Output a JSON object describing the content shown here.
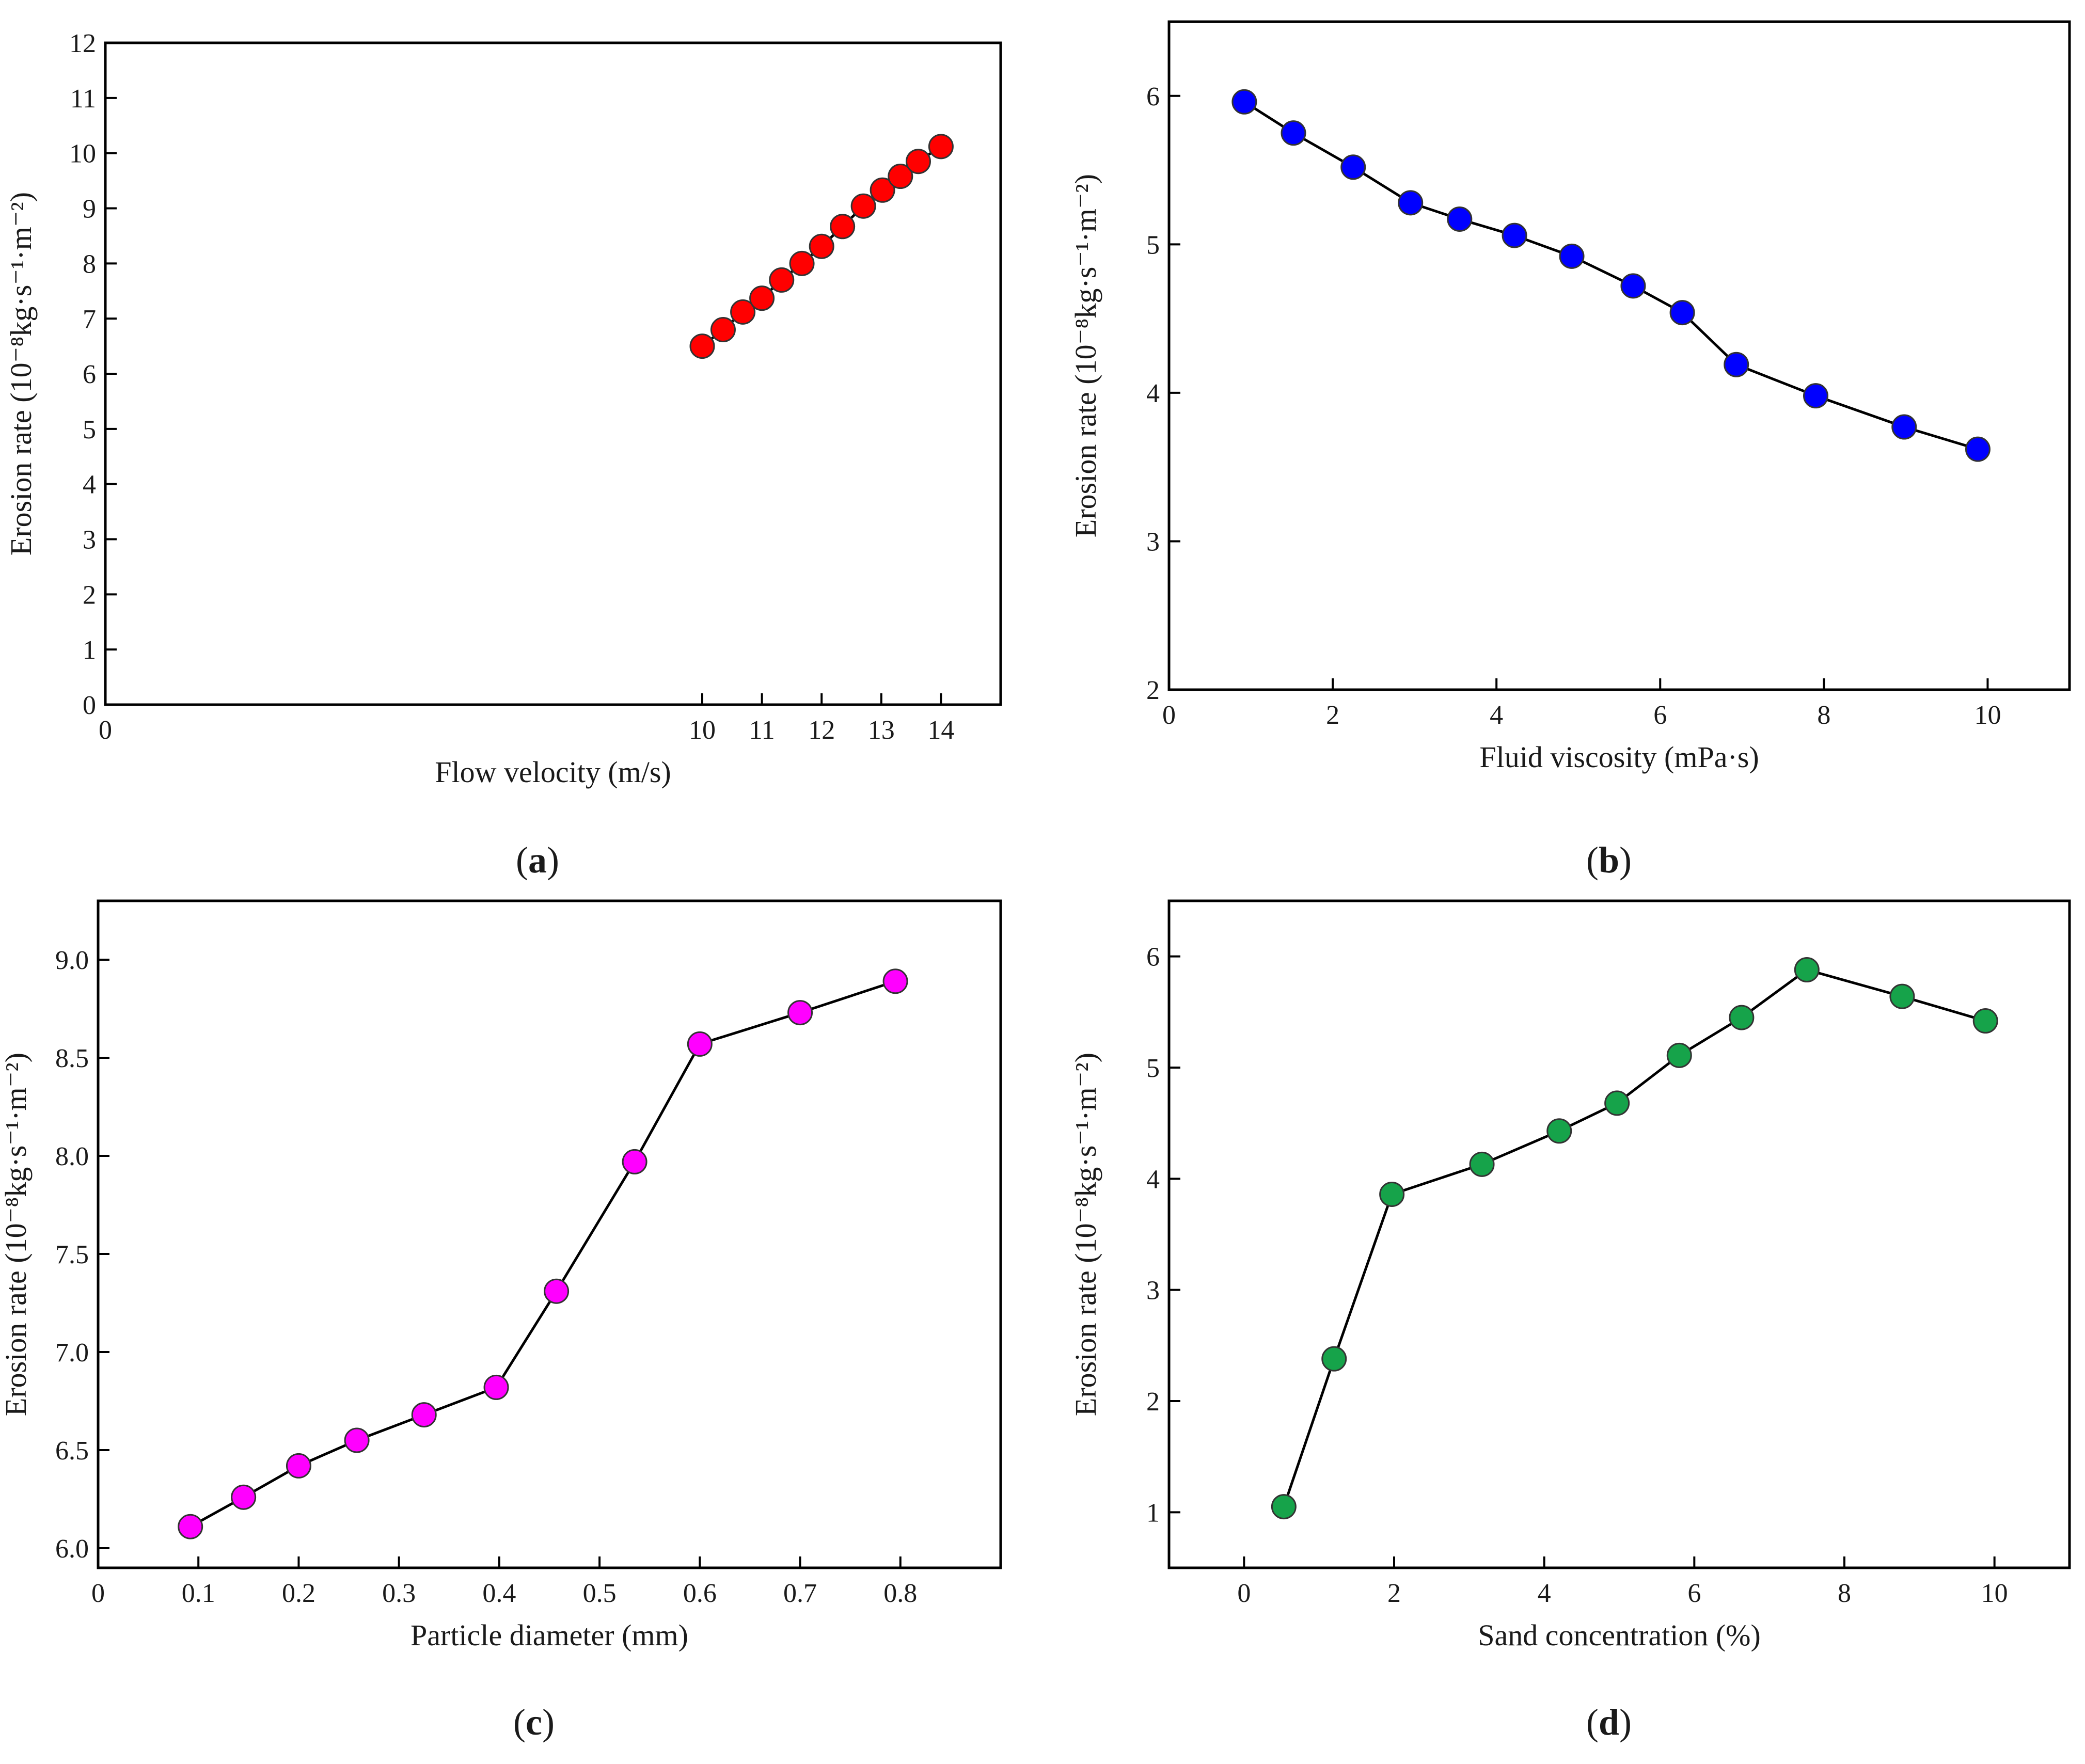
{
  "chart_data": [
    {
      "type": "line",
      "panel_label": "a",
      "xlabel": "Flow velocity (m/s)",
      "ylabel": "Erosion rate (10⁻⁸kg·s⁻¹·m⁻²)",
      "xlim": [
        0,
        15
      ],
      "ylim": [
        0,
        12
      ],
      "xticks": [
        0,
        10,
        11,
        12,
        13,
        14
      ],
      "xtick_labels": [
        "0",
        "10",
        "11",
        "12",
        "13",
        "14"
      ],
      "yticks": [
        0,
        1,
        2,
        3,
        4,
        5,
        6,
        7,
        8,
        9,
        10,
        11,
        12
      ],
      "ytick_labels": [
        "0",
        "1",
        "2",
        "3",
        "4",
        "5",
        "6",
        "7",
        "8",
        "9",
        "10",
        "11",
        "12"
      ],
      "x_break": {
        "from": 0,
        "to": 10
      },
      "marker_color": "#ff0000",
      "series": [
        {
          "name": "Erosion rate",
          "x": [
            10.0,
            10.35,
            10.68,
            11.0,
            11.33,
            11.67,
            12.0,
            12.35,
            12.7,
            13.02,
            13.32,
            13.62,
            14.0
          ],
          "y": [
            6.5,
            6.8,
            7.12,
            7.37,
            7.7,
            8.0,
            8.31,
            8.67,
            9.04,
            9.33,
            9.58,
            9.85,
            10.12
          ]
        }
      ]
    },
    {
      "type": "line",
      "panel_label": "b",
      "xlabel": "Fluid viscosity (mPa·s)",
      "ylabel": "Erosion rate (10⁻⁸kg·s⁻¹·m⁻²)",
      "xlim": [
        0,
        11
      ],
      "ylim": [
        2,
        6.5
      ],
      "xticks": [
        0,
        2,
        4,
        6,
        8,
        10
      ],
      "xtick_labels": [
        "0",
        "2",
        "4",
        "6",
        "8",
        "10"
      ],
      "yticks": [
        2,
        3,
        4,
        5,
        6
      ],
      "ytick_labels": [
        "2",
        "3",
        "4",
        "5",
        "6"
      ],
      "marker_color": "#0000ff",
      "series": [
        {
          "name": "Erosion rate",
          "x": [
            0.92,
            1.52,
            2.25,
            2.95,
            3.55,
            4.22,
            4.92,
            5.67,
            6.27,
            6.93,
            7.9,
            8.98,
            9.88
          ],
          "y": [
            5.96,
            5.75,
            5.52,
            5.28,
            5.17,
            5.06,
            4.92,
            4.72,
            4.54,
            4.19,
            3.98,
            3.77,
            3.62
          ]
        }
      ]
    },
    {
      "type": "line",
      "panel_label": "c",
      "xlabel": "Particle diameter (mm)",
      "ylabel": "Erosion rate (10⁻⁸kg·s⁻¹·m⁻²)",
      "xlim": [
        0,
        0.9
      ],
      "ylim": [
        5.9,
        9.3
      ],
      "xticks": [
        0,
        0.1,
        0.2,
        0.3,
        0.4,
        0.5,
        0.6,
        0.7,
        0.8
      ],
      "xtick_labels": [
        "0",
        "0.1",
        "0.2",
        "0.3",
        "0.4",
        "0.5",
        "0.6",
        "0.7",
        "0.8"
      ],
      "yticks": [
        6.0,
        6.5,
        7.0,
        7.5,
        8.0,
        8.5,
        9.0
      ],
      "ytick_labels": [
        "6.0",
        "6.5",
        "7.0",
        "7.5",
        "8.0",
        "8.5",
        "9.0"
      ],
      "marker_color": "#ff00ff",
      "series": [
        {
          "name": "Erosion rate",
          "x": [
            0.092,
            0.145,
            0.2,
            0.258,
            0.325,
            0.397,
            0.457,
            0.535,
            0.6,
            0.7,
            0.795
          ],
          "y": [
            6.11,
            6.26,
            6.42,
            6.55,
            6.68,
            6.82,
            7.31,
            7.97,
            8.57,
            8.73,
            8.89
          ]
        }
      ]
    },
    {
      "type": "line",
      "panel_label": "d",
      "xlabel": "Sand concentration (%)",
      "ylabel": "Erosion rate (10⁻⁸kg·s⁻¹·m⁻²)",
      "xlim": [
        -1,
        11
      ],
      "ylim": [
        0.5,
        6.5
      ],
      "xticks": [
        0,
        2,
        4,
        6,
        8,
        10
      ],
      "xtick_labels": [
        "0",
        "2",
        "4",
        "6",
        "8",
        "10"
      ],
      "yticks": [
        1,
        2,
        3,
        4,
        5,
        6
      ],
      "ytick_labels": [
        "1",
        "2",
        "3",
        "4",
        "5",
        "6"
      ],
      "marker_color": "#16a34a",
      "series": [
        {
          "name": "Erosion rate",
          "x": [
            0.53,
            1.2,
            1.97,
            3.17,
            4.2,
            4.97,
            5.8,
            6.63,
            7.5,
            8.77,
            9.88
          ],
          "y": [
            1.05,
            2.38,
            3.86,
            4.13,
            4.43,
            4.68,
            5.11,
            5.45,
            5.88,
            5.64,
            5.42
          ]
        }
      ]
    }
  ]
}
